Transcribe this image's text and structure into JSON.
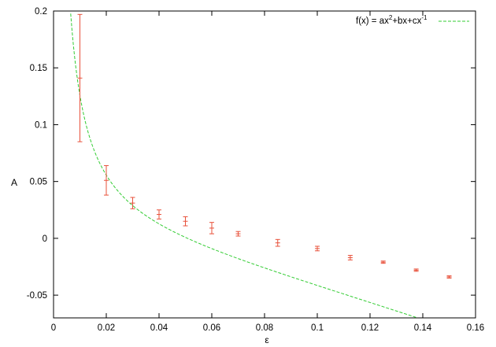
{
  "chart_data": {
    "type": "scatter",
    "xlabel": "ε",
    "ylabel": "A",
    "xlim": [
      0,
      0.16
    ],
    "ylim": [
      -0.07,
      0.2
    ],
    "x_ticks": [
      "0",
      "0.02",
      "0.04",
      "0.06",
      "0.08",
      "0.1",
      "0.12",
      "0.14",
      "0.16"
    ],
    "y_ticks": [
      "-0.05",
      "0",
      "0.05",
      "0.1",
      "0.15",
      "0.2"
    ],
    "x_tick_values": [
      0,
      0.02,
      0.04,
      0.06,
      0.08,
      0.1,
      0.12,
      0.14,
      0.16
    ],
    "y_tick_values": [
      -0.05,
      0,
      0.05,
      0.1,
      0.15,
      0.2
    ],
    "grid": false,
    "legend_position": "top-right",
    "series": [
      {
        "kind": "errorbars",
        "color": "#e8503a",
        "points": [
          {
            "x": 0.01,
            "y": 0.141,
            "err": 0.056
          },
          {
            "x": 0.02,
            "y": 0.051,
            "err": 0.013
          },
          {
            "x": 0.03,
            "y": 0.031,
            "err": 0.005
          },
          {
            "x": 0.04,
            "y": 0.021,
            "err": 0.004
          },
          {
            "x": 0.05,
            "y": 0.015,
            "err": 0.004
          },
          {
            "x": 0.06,
            "y": 0.009,
            "err": 0.005
          },
          {
            "x": 0.07,
            "y": 0.004,
            "err": 0.002
          },
          {
            "x": 0.085,
            "y": -0.004,
            "err": 0.003
          },
          {
            "x": 0.1,
            "y": -0.009,
            "err": 0.002
          },
          {
            "x": 0.1125,
            "y": -0.017,
            "err": 0.002
          },
          {
            "x": 0.125,
            "y": -0.021,
            "err": 0.001
          },
          {
            "x": 0.1375,
            "y": -0.028,
            "err": 0.001
          },
          {
            "x": 0.15,
            "y": -0.034,
            "err": 0.001
          }
        ]
      },
      {
        "kind": "fit",
        "legend_base": "f(x) = ax",
        "legend_sup1": "2",
        "legend_mid": "+bx+cx",
        "legend_sup2": "-1",
        "color": "#33cc33",
        "coefficients": {
          "a": -0.8,
          "b": -0.465,
          "c": 0.001305
        }
      }
    ]
  }
}
